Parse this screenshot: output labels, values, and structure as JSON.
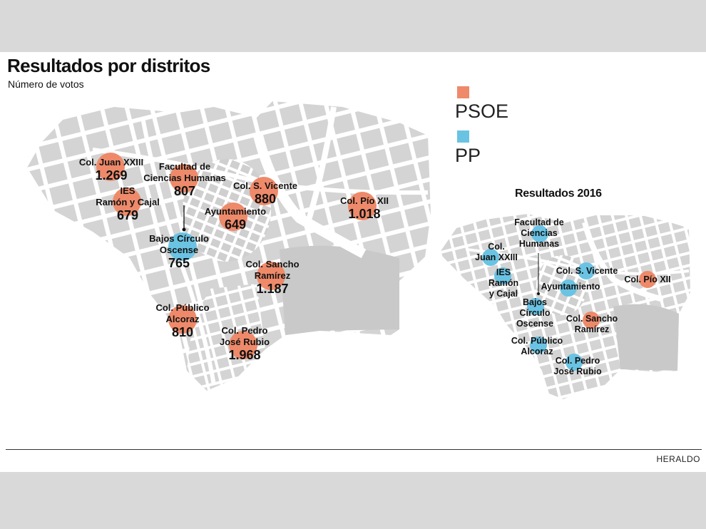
{
  "header": {
    "title": "Resultados por distritos",
    "subtitle": "Número de votos"
  },
  "legend": [
    {
      "label": "PSOE",
      "color": "#ee8a6a"
    },
    {
      "label": "PP",
      "color": "#6ac3e3"
    }
  ],
  "main_map": {
    "districts": [
      {
        "name": [
          "Col. Juan XXIII"
        ],
        "value": "1.269",
        "winner": "PSOE"
      },
      {
        "name": [
          "IES",
          "Ramón y Cajal"
        ],
        "value": "679",
        "winner": "PSOE"
      },
      {
        "name": [
          "Facultad de",
          "Ciencias Humanas"
        ],
        "value": "807",
        "winner": "PSOE"
      },
      {
        "name": [
          "Bajos Círculo",
          "Oscense"
        ],
        "value": "765",
        "winner": "PP"
      },
      {
        "name": [
          "Col. S. Vicente"
        ],
        "value": "880",
        "winner": "PSOE"
      },
      {
        "name": [
          "Ayuntamiento"
        ],
        "value": "649",
        "winner": "PSOE"
      },
      {
        "name": [
          "Col. Pío XII"
        ],
        "value": "1.018",
        "winner": "PSOE"
      },
      {
        "name": [
          "Col. Sancho",
          "Ramírez"
        ],
        "value": "1.187",
        "winner": "PSOE"
      },
      {
        "name": [
          "Col. Público",
          "Alcoraz"
        ],
        "value": "810",
        "winner": "PSOE"
      },
      {
        "name": [
          "Col. Pedro",
          "José Rubio"
        ],
        "value": "1.968",
        "winner": "PSOE"
      }
    ]
  },
  "map_2016": {
    "title": "Resultados 2016",
    "districts": [
      {
        "name": [
          "Col.",
          "Juan XXIII"
        ],
        "winner": "PP"
      },
      {
        "name": [
          "IES",
          "Ramón",
          "y Cajal"
        ],
        "winner": "PP"
      },
      {
        "name": [
          "Facultad de",
          "Ciencias",
          "Humanas"
        ],
        "winner": "PP"
      },
      {
        "name": [
          "Bajos",
          "Círculo",
          "Oscense"
        ],
        "winner": "PP"
      },
      {
        "name": [
          "Col. S. Vicente"
        ],
        "winner": "PP"
      },
      {
        "name": [
          "Ayuntamiento"
        ],
        "winner": "PP"
      },
      {
        "name": [
          "Col. Pío XII"
        ],
        "winner": "PSOE"
      },
      {
        "name": [
          "Col. Sancho",
          "Ramírez"
        ],
        "winner": "PSOE"
      },
      {
        "name": [
          "Col. Público",
          "Alcoraz"
        ],
        "winner": "PP"
      },
      {
        "name": [
          "Col. Pedro",
          "José Rubio"
        ],
        "winner": "PP"
      }
    ]
  },
  "footer": {
    "credit": "HERALDO"
  }
}
